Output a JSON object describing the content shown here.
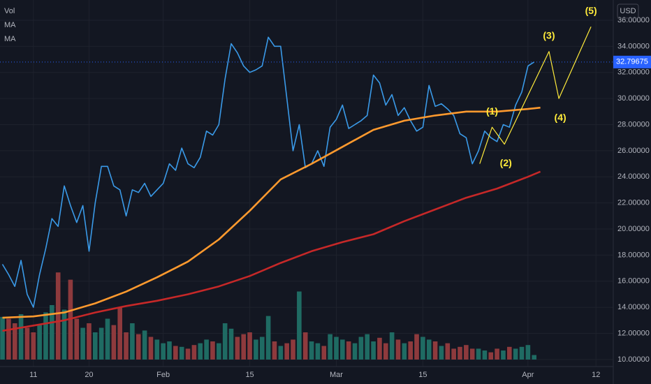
{
  "chart_data": {
    "type": "line",
    "indicators": [
      "Vol",
      "MA",
      "MA"
    ],
    "currency": "USD",
    "x": [
      -5,
      -4,
      -3,
      -2,
      -1,
      0,
      1,
      2,
      3,
      4,
      5,
      6,
      7,
      8,
      9,
      10,
      11,
      12,
      13,
      14,
      15,
      16,
      17,
      18,
      19,
      20,
      21,
      22,
      23,
      24,
      25,
      26,
      27,
      28,
      29,
      30,
      31,
      32,
      33,
      34,
      35,
      36,
      37,
      38,
      39,
      40,
      41,
      42,
      43,
      44,
      45,
      46,
      47,
      48,
      49,
      50,
      51,
      52,
      53,
      54,
      55,
      56,
      57,
      58,
      59,
      60,
      61,
      62,
      63,
      64,
      65,
      66,
      67,
      68,
      69,
      70,
      71,
      72,
      73,
      74,
      75,
      76,
      77,
      78,
      79,
      80,
      81
    ],
    "series": [
      {
        "color": "#3a9ae8",
        "values": [
          17.3,
          16.5,
          15.6,
          17.6,
          15,
          14,
          16.5,
          18.5,
          20.8,
          20.2,
          23.3,
          21.8,
          20.5,
          21.8,
          18.3,
          22,
          24.8,
          24.8,
          23.3,
          23,
          21,
          23,
          22.8,
          23.5,
          22.5,
          23,
          23.5,
          25,
          24.5,
          26.2,
          25,
          24.7,
          25.5,
          27.5,
          27.2,
          28,
          31.5,
          34.2,
          33.5,
          32.5,
          32,
          32.2,
          32.5,
          34.7,
          34,
          34,
          30,
          26,
          28,
          24.7,
          25,
          26,
          24.8,
          27.8,
          28.4,
          29.5,
          27.7,
          28,
          28.3,
          28.7,
          31.8,
          31.2,
          29.5,
          30.3,
          28.7,
          29.3,
          28.3,
          27.5,
          27.8,
          31,
          29.4,
          29.6,
          29.2,
          28.7,
          27.3,
          27,
          25,
          26,
          27.5,
          27,
          26.7,
          28,
          27.8,
          29.5,
          30.5,
          32.5,
          32.8
        ]
      },
      {
        "color": "#ff9a2e",
        "x": [
          -5,
          0,
          5,
          10,
          15,
          20,
          25,
          30,
          35,
          40,
          45,
          50,
          55,
          60,
          65,
          70,
          75,
          80,
          82
        ],
        "values": [
          13.2,
          13.3,
          13.6,
          14.3,
          15.2,
          16.3,
          17.5,
          19.2,
          21.4,
          23.8,
          25,
          26.3,
          27.6,
          28.3,
          28.7,
          29,
          29,
          29.2,
          29.3
        ]
      },
      {
        "color": "#c62828",
        "x": [
          -5,
          0,
          5,
          10,
          15,
          20,
          25,
          30,
          35,
          40,
          45,
          50,
          55,
          60,
          65,
          70,
          75,
          80,
          82
        ],
        "values": [
          12.2,
          12.6,
          13,
          13.6,
          14.1,
          14.5,
          15,
          15.6,
          16.4,
          17.4,
          18.3,
          19,
          19.6,
          20.6,
          21.5,
          22.4,
          23.1,
          24,
          24.4
        ]
      }
    ],
    "volume": {
      "up_color": "#1f6b63",
      "down_color": "#8e3a3d",
      "ylim": [
        0,
        100
      ],
      "values": [
        47,
        45,
        40,
        50,
        35,
        30,
        38,
        52,
        60,
        96,
        55,
        88,
        45,
        35,
        40,
        30,
        35,
        45,
        38,
        57,
        30,
        40,
        28,
        32,
        25,
        22,
        18,
        20,
        15,
        14,
        12,
        16,
        18,
        22,
        20,
        18,
        40,
        34,
        25,
        28,
        30,
        22,
        25,
        48,
        20,
        15,
        18,
        22,
        75,
        30,
        20,
        18,
        15,
        28,
        25,
        22,
        20,
        18,
        25,
        28,
        20,
        24,
        18,
        30,
        22,
        18,
        20,
        28,
        25,
        22,
        20,
        15,
        18,
        12,
        14,
        16,
        12,
        12,
        10,
        8,
        12,
        10,
        14,
        12,
        14,
        16,
        5
      ]
    },
    "waves": {
      "color": "#ffeb3b",
      "x": [
        72.2,
        74.2,
        76.2,
        83.4,
        85,
        90.2
      ],
      "values": [
        25,
        27.8,
        26.5,
        33.6,
        30,
        35.5
      ],
      "labels": [
        "(1)",
        "(2)",
        "(3)",
        "(4)",
        "(5)"
      ]
    },
    "last_price": {
      "value": 32.79675,
      "label": "32.79675",
      "color": "#2962ff"
    },
    "xlim": [
      -5.4,
      93.8
    ],
    "xticks": [
      {
        "value": 0,
        "label": "11"
      },
      {
        "value": 9,
        "label": "20"
      },
      {
        "value": 21,
        "label": "Feb"
      },
      {
        "value": 35,
        "label": "15"
      },
      {
        "value": 49,
        "label": "Mar"
      },
      {
        "value": 63,
        "label": "15"
      },
      {
        "value": 80,
        "label": "Apr"
      },
      {
        "value": 91,
        "label": "12"
      }
    ],
    "ylim": [
      9.46,
      37.55
    ],
    "yticks": [
      {
        "value": 10,
        "label": "10.00000"
      },
      {
        "value": 12,
        "label": "12.00000"
      },
      {
        "value": 14,
        "label": "14.00000"
      },
      {
        "value": 16,
        "label": "16.00000"
      },
      {
        "value": 18,
        "label": "18.00000"
      },
      {
        "value": 20,
        "label": "20.00000"
      },
      {
        "value": 22,
        "label": "22.00000"
      },
      {
        "value": 24,
        "label": "24.00000"
      },
      {
        "value": 26,
        "label": "26.00000"
      },
      {
        "value": 28,
        "label": "28.00000"
      },
      {
        "value": 30,
        "label": "30.00000"
      },
      {
        "value": 32,
        "label": "32.00000"
      },
      {
        "value": 34,
        "label": "34.00000"
      },
      {
        "value": 36,
        "label": "36.00000"
      }
    ],
    "grid": true
  }
}
